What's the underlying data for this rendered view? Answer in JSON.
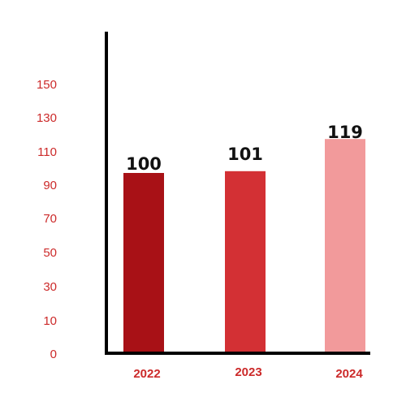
{
  "chart_data": {
    "type": "bar",
    "categories": [
      "2022",
      "2023",
      "2024"
    ],
    "values": [
      100,
      101,
      119
    ],
    "data_labels": [
      "100",
      "101",
      "119"
    ],
    "y_ticks": [
      "0",
      "10",
      "30",
      "50",
      "70",
      "90",
      "110",
      "130",
      "150"
    ],
    "ylim": [
      0,
      160
    ],
    "title": "",
    "xlabel": "",
    "ylabel": "",
    "grid": false,
    "colors": {
      "bars": [
        "#a81116",
        "#d33034",
        "#f29a9b"
      ],
      "tick_labels": "#cc2a2a",
      "data_labels": "#111111",
      "axes": "#000000"
    }
  }
}
